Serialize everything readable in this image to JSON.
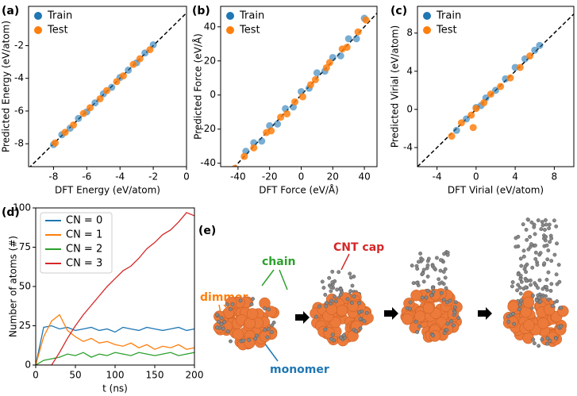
{
  "chart_data": [
    {
      "type": "scatter",
      "label": "(a)",
      "xlabel": "DFT Energy (eV/atom)",
      "ylabel": "Predicted Energy (eV/atom)",
      "xlim": [
        -9.5,
        0
      ],
      "ylim": [
        -9.4,
        0.4
      ],
      "xticks": [
        -8,
        -6,
        -4,
        -2,
        0
      ],
      "yticks": [
        -8,
        -6,
        -4,
        -2
      ],
      "parity_line": true,
      "legend": "upper left",
      "series": [
        {
          "name": "Train",
          "color": "#1f77b4",
          "x": [
            -8,
            -7.5,
            -7,
            -6.5,
            -6,
            -5.5,
            -5,
            -4.5,
            -4,
            -3.5,
            -3,
            -2.5,
            -2
          ],
          "values": [
            -8.05,
            -7.45,
            -7.05,
            -6.45,
            -6.05,
            -5.5,
            -4.95,
            -4.55,
            -3.95,
            -3.5,
            -3.05,
            -2.45,
            -1.95
          ]
        },
        {
          "name": "Test",
          "color": "#ff7f0e",
          "x": [
            -7.9,
            -7.3,
            -6.8,
            -6.2,
            -5.8,
            -5.2,
            -4.8,
            -4.2,
            -3.8,
            -3.2,
            -2.8,
            -2.2
          ],
          "values": [
            -7.95,
            -7.3,
            -6.85,
            -6.15,
            -5.8,
            -5.25,
            -4.75,
            -4.2,
            -3.85,
            -3.15,
            -2.8,
            -2.25
          ]
        }
      ]
    },
    {
      "type": "scatter",
      "label": "(b)",
      "xlabel": "DFT Force (eV/Å)",
      "ylabel": "Predicted Force (eV/Å)",
      "xlim": [
        -51,
        48
      ],
      "ylim": [
        -42,
        52
      ],
      "xticks": [
        -40,
        -20,
        0,
        20,
        40
      ],
      "yticks": [
        -40,
        -20,
        0,
        20,
        40
      ],
      "parity_line": true,
      "legend": "upper left",
      "series": [
        {
          "name": "Train",
          "color": "#1f77b4",
          "x": [
            -40,
            -35,
            -30,
            -25,
            -20,
            -15,
            -10,
            -5,
            0,
            5,
            10,
            15,
            20,
            25,
            30,
            35,
            40
          ],
          "values": [
            -44,
            -33,
            -28,
            -27,
            -18,
            -17,
            -8,
            -7,
            2,
            4,
            13,
            14,
            22,
            23,
            33,
            33,
            45
          ]
        },
        {
          "name": "Test",
          "color": "#ff7f0e",
          "x": [
            -42,
            -36,
            -30,
            -22,
            -19,
            -13,
            -9,
            -4,
            1,
            6,
            9,
            16,
            18,
            26,
            29,
            36,
            41
          ],
          "values": [
            -43,
            -36,
            -31,
            -22,
            -21,
            -13,
            -11,
            -4,
            -1,
            6,
            9,
            16,
            19,
            27,
            28,
            37,
            44
          ]
        }
      ]
    },
    {
      "type": "scatter",
      "label": "(c)",
      "xlabel": "DFT Virial (eV/atom)",
      "ylabel": "Predicted Virial (eV/atom)",
      "xlim": [
        -6,
        10
      ],
      "ylim": [
        -6,
        10.8
      ],
      "xticks": [
        -4,
        0,
        4,
        8
      ],
      "yticks": [
        -4,
        0,
        4,
        8
      ],
      "parity_line": true,
      "legend": "upper left",
      "series": [
        {
          "name": "Train",
          "color": "#1f77b4",
          "x": [
            -2,
            -1,
            0,
            0.5,
            1,
            2,
            3,
            4,
            5,
            6,
            6.5
          ],
          "values": [
            -2.2,
            -1,
            0.2,
            0.4,
            1.2,
            2,
            3.2,
            4.4,
            5.3,
            6.2,
            6.7
          ]
        },
        {
          "name": "Test",
          "color": "#ff7f0e",
          "x": [
            -2.5,
            -1.5,
            -0.5,
            0,
            0.8,
            1.5,
            2.5,
            3.5,
            4.5,
            5.5,
            -0.3
          ],
          "values": [
            -2.8,
            -1.4,
            -0.6,
            0.1,
            0.7,
            1.6,
            2.4,
            3.3,
            4.4,
            5.6,
            -1.9
          ]
        }
      ]
    },
    {
      "type": "line",
      "label": "(d)",
      "xlabel": "t (ns)",
      "ylabel": "Number of atoms (#)",
      "xlim": [
        0,
        200
      ],
      "ylim": [
        0,
        100
      ],
      "xticks": [
        0,
        50,
        100,
        150,
        200
      ],
      "yticks": [
        0,
        25,
        50,
        75,
        100
      ],
      "legend": "upper left",
      "x": [
        0,
        10,
        20,
        30,
        40,
        50,
        60,
        70,
        80,
        90,
        100,
        110,
        120,
        130,
        140,
        150,
        160,
        170,
        180,
        190,
        200
      ],
      "series": [
        {
          "name": "CN = 0",
          "color": "#1f77b4",
          "values": [
            0,
            24,
            25,
            23,
            24,
            22,
            23,
            24,
            22,
            23,
            21,
            24,
            23,
            22,
            24,
            23,
            22,
            23,
            24,
            22,
            23
          ]
        },
        {
          "name": "CN = 1",
          "color": "#ff7f0e",
          "values": [
            0,
            18,
            28,
            32,
            22,
            18,
            15,
            17,
            14,
            15,
            13,
            12,
            14,
            11,
            13,
            10,
            12,
            11,
            13,
            10,
            11
          ]
        },
        {
          "name": "CN = 2",
          "color": "#2ca02c",
          "values": [
            0,
            3,
            4,
            5,
            7,
            6,
            8,
            5,
            7,
            6,
            8,
            7,
            6,
            8,
            7,
            6,
            7,
            8,
            6,
            7,
            8
          ]
        },
        {
          "name": "CN = 3",
          "color": "#d62728",
          "values": [
            0,
            0,
            0,
            8,
            17,
            25,
            32,
            38,
            44,
            50,
            55,
            60,
            63,
            68,
            74,
            78,
            83,
            86,
            91,
            97,
            95
          ]
        }
      ]
    }
  ],
  "diagram": {
    "label": "(e)",
    "dimmer": "dimmer",
    "chain": "chain",
    "cnt_cap": "CNT cap",
    "monomer": "monomer"
  }
}
